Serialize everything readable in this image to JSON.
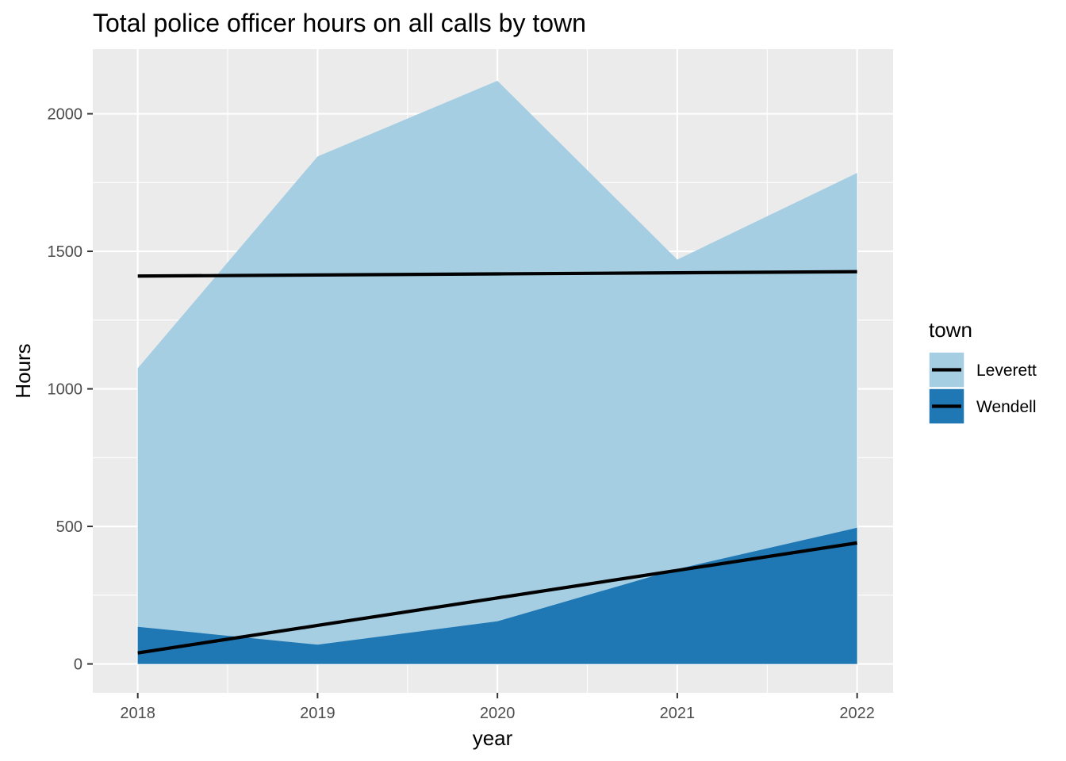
{
  "chart_data": {
    "type": "area",
    "title": "Total police officer hours on all calls by town",
    "xlabel": "year",
    "ylabel": "Hours",
    "x": [
      2018,
      2019,
      2020,
      2021,
      2022
    ],
    "x_ticks": [
      "2018",
      "2019",
      "2020",
      "2021",
      "2022"
    ],
    "y_ticks": [
      "0",
      "500",
      "1000",
      "1500",
      "2000"
    ],
    "xlim": [
      2017.75,
      2022.2
    ],
    "ylim": [
      -105,
      2235
    ],
    "grid": true,
    "legend": {
      "title": "town",
      "placement": "right"
    },
    "series": [
      {
        "name": "Leverett",
        "color": "#A6CEE3",
        "values": [
          1075,
          1845,
          2120,
          1470,
          1785
        ],
        "trend": [
          1410,
          1414,
          1418,
          1422,
          1426
        ]
      },
      {
        "name": "Wendell",
        "color": "#1F78B4",
        "values": [
          135,
          70,
          155,
          345,
          495
        ],
        "trend": [
          40,
          140,
          240,
          340,
          440
        ]
      }
    ],
    "trend_color": "#000000",
    "panel_background": "#EBEBEB",
    "grid_color": "#FFFFFF"
  }
}
